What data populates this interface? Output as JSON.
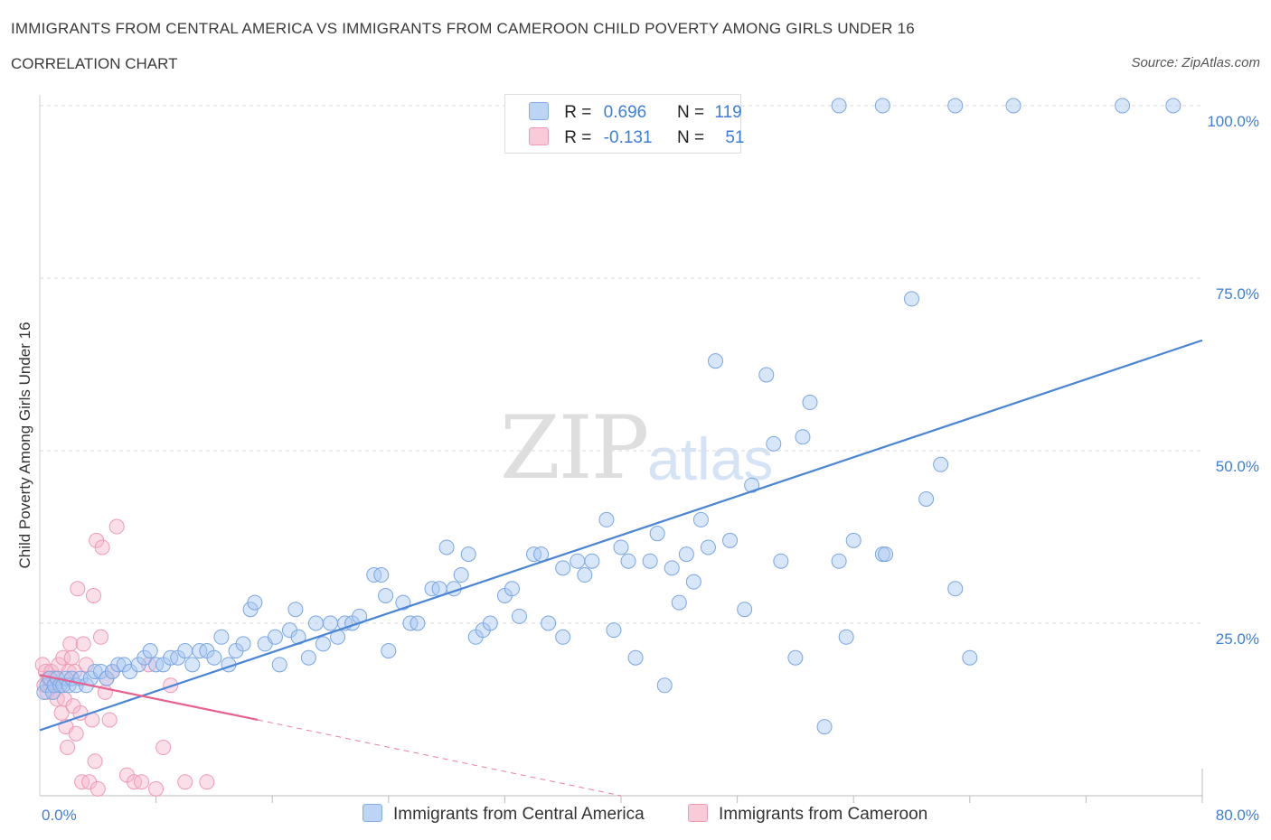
{
  "header": {
    "title": "IMMIGRANTS FROM CENTRAL AMERICA VS IMMIGRANTS FROM CAMEROON CHILD POVERTY AMONG GIRLS UNDER 16",
    "subtitle": "CORRELATION CHART",
    "source": "Source: ZipAtlas.com"
  },
  "watermark": {
    "zip": "ZIP",
    "atlas": "atlas"
  },
  "legend": {
    "rows": [
      {
        "r_label": "R =",
        "r_value": "0.696",
        "n_label": "N =",
        "n_value": "119",
        "color": "#a9c8f2"
      },
      {
        "r_label": "R =",
        "r_value": "-0.131",
        "n_label": "N =",
        "n_value": "51",
        "color": "#f6b9cb"
      }
    ]
  },
  "bottom_legend": {
    "items": [
      {
        "label": "Immigrants from Central America",
        "color": "#a9c8f2"
      },
      {
        "label": "Immigrants from Cameroon",
        "color": "#f6b9cb"
      }
    ]
  },
  "chart_data": {
    "type": "scatter",
    "xlabel": "",
    "ylabel": "Child Poverty Among Girls Under 16",
    "xlim": [
      0,
      80
    ],
    "ylim": [
      0,
      100
    ],
    "x_tick_labels": [
      "0.0%",
      "80.0%"
    ],
    "y_tick_labels": [
      "25.0%",
      "50.0%",
      "75.0%",
      "100.0%"
    ],
    "y_ticks": [
      25,
      50,
      75,
      100
    ],
    "grid": true,
    "colors": {
      "blue": "#4a86d6",
      "blue_fill": "#a9c8f2",
      "pink": "#e7608f",
      "pink_fill": "#f6b9cb",
      "tick": "#3f7ed8"
    },
    "series": [
      {
        "name": "Immigrants from Central America",
        "color": "#4a86d6",
        "trend": {
          "x": [
            0,
            80
          ],
          "y": [
            9.5,
            66
          ]
        },
        "points": [
          [
            0.3,
            15
          ],
          [
            0.5,
            16
          ],
          [
            0.7,
            17
          ],
          [
            0.9,
            15
          ],
          [
            1.0,
            16
          ],
          [
            1.2,
            17
          ],
          [
            1.4,
            16
          ],
          [
            1.6,
            16
          ],
          [
            1.8,
            17
          ],
          [
            2.0,
            16
          ],
          [
            2.2,
            17
          ],
          [
            2.5,
            16
          ],
          [
            2.8,
            17
          ],
          [
            3.2,
            16
          ],
          [
            3.5,
            17
          ],
          [
            3.8,
            18
          ],
          [
            4.2,
            18
          ],
          [
            4.6,
            17
          ],
          [
            5.0,
            18
          ],
          [
            5.4,
            19
          ],
          [
            5.8,
            19
          ],
          [
            6.2,
            18
          ],
          [
            6.8,
            19
          ],
          [
            7.2,
            20
          ],
          [
            7.6,
            21
          ],
          [
            8.0,
            19
          ],
          [
            8.5,
            19
          ],
          [
            9.0,
            20
          ],
          [
            9.5,
            20
          ],
          [
            10.0,
            21
          ],
          [
            10.5,
            19
          ],
          [
            11.0,
            21
          ],
          [
            11.5,
            21
          ],
          [
            12.0,
            20
          ],
          [
            12.5,
            23
          ],
          [
            13.0,
            19
          ],
          [
            13.5,
            21
          ],
          [
            14.0,
            22
          ],
          [
            14.5,
            27
          ],
          [
            14.8,
            28
          ],
          [
            15.5,
            22
          ],
          [
            16.2,
            23
          ],
          [
            16.5,
            19
          ],
          [
            17.2,
            24
          ],
          [
            17.6,
            27
          ],
          [
            17.8,
            23
          ],
          [
            18.5,
            20
          ],
          [
            19.0,
            25
          ],
          [
            19.5,
            22
          ],
          [
            20.0,
            25
          ],
          [
            20.5,
            23
          ],
          [
            21.0,
            25
          ],
          [
            21.5,
            25
          ],
          [
            22.0,
            26
          ],
          [
            23.0,
            32
          ],
          [
            23.5,
            32
          ],
          [
            23.8,
            29
          ],
          [
            24.0,
            21
          ],
          [
            25.0,
            28
          ],
          [
            25.5,
            25
          ],
          [
            26.0,
            25
          ],
          [
            27.0,
            30
          ],
          [
            27.5,
            30
          ],
          [
            28.0,
            36
          ],
          [
            28.5,
            30
          ],
          [
            29.0,
            32
          ],
          [
            29.5,
            35
          ],
          [
            30.0,
            23
          ],
          [
            30.5,
            24
          ],
          [
            31.0,
            25
          ],
          [
            32.0,
            29
          ],
          [
            32.5,
            30
          ],
          [
            33.0,
            26
          ],
          [
            34.0,
            35
          ],
          [
            34.5,
            35
          ],
          [
            35.0,
            25
          ],
          [
            36.0,
            33
          ],
          [
            36.0,
            23
          ],
          [
            37.0,
            34
          ],
          [
            37.5,
            32
          ],
          [
            38.0,
            34
          ],
          [
            39.0,
            40
          ],
          [
            39.5,
            24
          ],
          [
            40.0,
            36
          ],
          [
            40.5,
            34
          ],
          [
            41.0,
            20
          ],
          [
            42.0,
            34
          ],
          [
            42.5,
            38
          ],
          [
            43.0,
            16
          ],
          [
            43.5,
            33
          ],
          [
            44.0,
            28
          ],
          [
            44.5,
            35
          ],
          [
            45.0,
            31
          ],
          [
            45.5,
            40
          ],
          [
            46.0,
            36
          ],
          [
            46.5,
            63
          ],
          [
            47.5,
            37
          ],
          [
            48.5,
            27
          ],
          [
            49.0,
            45
          ],
          [
            50.0,
            61
          ],
          [
            50.5,
            51
          ],
          [
            51.0,
            34
          ],
          [
            52.0,
            20
          ],
          [
            52.5,
            52
          ],
          [
            53.0,
            57
          ],
          [
            54.0,
            10
          ],
          [
            55.0,
            34
          ],
          [
            55.5,
            23
          ],
          [
            56.0,
            37
          ],
          [
            58.0,
            35
          ],
          [
            58.2,
            35
          ],
          [
            60.0,
            72
          ],
          [
            61.0,
            43
          ],
          [
            62.0,
            48
          ],
          [
            63.0,
            30
          ],
          [
            64.0,
            20
          ],
          [
            55,
            100
          ],
          [
            58,
            100
          ],
          [
            63,
            100
          ],
          [
            67,
            100
          ],
          [
            74.5,
            100
          ],
          [
            78,
            100
          ]
        ]
      },
      {
        "name": "Immigrants from Cameroon",
        "color": "#e7608f",
        "trend": {
          "x": [
            0,
            15
          ],
          "y": [
            17.5,
            11
          ]
        },
        "trend_ext": {
          "x": [
            15,
            40
          ],
          "y": [
            11,
            0
          ]
        },
        "points": [
          [
            0.2,
            19
          ],
          [
            0.3,
            16
          ],
          [
            0.4,
            18
          ],
          [
            0.5,
            15
          ],
          [
            0.6,
            17
          ],
          [
            0.7,
            16
          ],
          [
            0.8,
            18
          ],
          [
            0.9,
            15
          ],
          [
            1.0,
            17
          ],
          [
            1.1,
            16
          ],
          [
            1.2,
            14
          ],
          [
            1.3,
            19
          ],
          [
            1.4,
            16
          ],
          [
            1.5,
            12
          ],
          [
            1.6,
            20
          ],
          [
            1.7,
            14
          ],
          [
            1.8,
            10
          ],
          [
            1.9,
            7
          ],
          [
            2.0,
            18
          ],
          [
            2.1,
            22
          ],
          [
            2.2,
            20
          ],
          [
            2.3,
            13
          ],
          [
            2.4,
            18
          ],
          [
            2.5,
            9
          ],
          [
            2.6,
            30
          ],
          [
            2.8,
            12
          ],
          [
            2.9,
            2
          ],
          [
            3.0,
            22
          ],
          [
            3.2,
            19
          ],
          [
            3.4,
            2
          ],
          [
            3.6,
            11
          ],
          [
            3.7,
            29
          ],
          [
            3.8,
            5
          ],
          [
            3.9,
            37
          ],
          [
            4.0,
            1
          ],
          [
            4.2,
            23
          ],
          [
            4.3,
            36
          ],
          [
            4.5,
            15
          ],
          [
            4.6,
            17
          ],
          [
            4.8,
            11
          ],
          [
            5.0,
            18
          ],
          [
            5.3,
            39
          ],
          [
            6.0,
            3
          ],
          [
            6.5,
            2
          ],
          [
            7.0,
            2
          ],
          [
            7.5,
            19
          ],
          [
            8.0,
            1
          ],
          [
            8.5,
            7
          ],
          [
            9.0,
            16
          ],
          [
            10.0,
            2
          ],
          [
            11.5,
            2
          ]
        ]
      }
    ]
  }
}
